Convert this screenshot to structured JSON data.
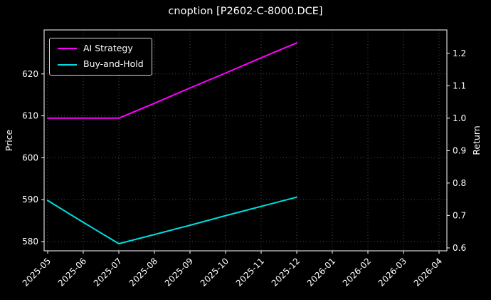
{
  "chart_data": {
    "type": "line",
    "title": "cnoption [P2602-C-8000.DCE]",
    "x_categories": [
      "2025-05",
      "2025-06",
      "2025-07",
      "2025-08",
      "2025-09",
      "2025-10",
      "2025-11",
      "2025-12",
      "2026-01",
      "2026-02",
      "2026-03",
      "2026-04"
    ],
    "x_lim": [
      -0.1,
      11.22
    ],
    "left_axis": {
      "label": "Price",
      "ticks": [
        580,
        590,
        600,
        610,
        620
      ],
      "lim": [
        577.8,
        630.5
      ]
    },
    "right_axis": {
      "label": "Return",
      "ticks": [
        0.6,
        0.7,
        0.8,
        0.9,
        1.0,
        1.1,
        1.2
      ],
      "lim": [
        0.591,
        1.272
      ]
    },
    "grid": true,
    "legend": {
      "position": "upper left"
    },
    "colors": {
      "background": "#000000",
      "text": "#ffffff",
      "grid": "#4d4d4d",
      "spine": "#ffffff"
    },
    "series": [
      {
        "name": "AI Strategy",
        "color": "#ff00ff",
        "axis": "return",
        "x": [
          "2025-05",
          "2025-06",
          "2025-07",
          "2025-08",
          "2025-09",
          "2025-10",
          "2025-11",
          "2025-12"
        ],
        "values": [
          1.0,
          1.0,
          1.0,
          1.046,
          1.093,
          1.139,
          1.186,
          1.232
        ]
      },
      {
        "name": "Buy-and-Hold",
        "color": "#00dcdc",
        "axis": "price",
        "x": [
          "2025-05",
          "2025-06",
          "2025-07",
          "2025-08",
          "2025-09",
          "2025-10",
          "2025-11",
          "2025-12"
        ],
        "values": [
          589.8,
          584.6,
          579.5,
          581.7,
          583.9,
          586.2,
          588.4,
          590.6
        ]
      }
    ]
  }
}
